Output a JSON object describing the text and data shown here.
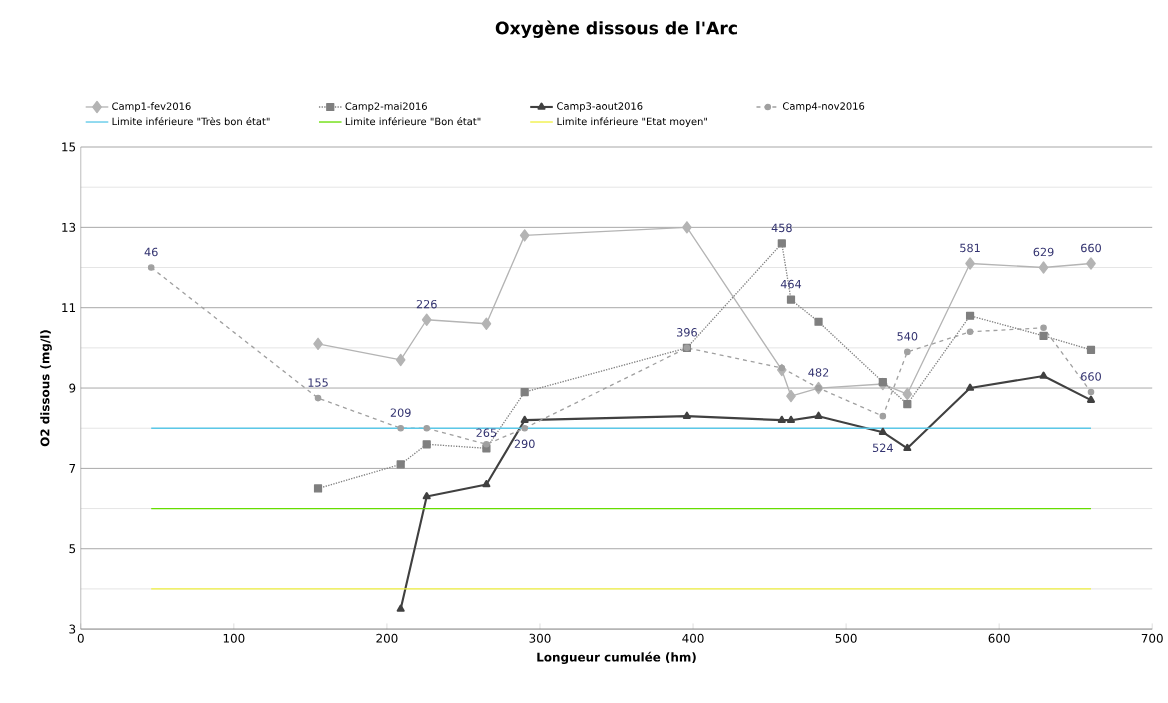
{
  "chart_data": {
    "type": "line",
    "title": "Oxygène dissous de l'Arc",
    "xlabel": "Longueur cumulée (hm)",
    "ylabel": "O2 dissous (mg/l)",
    "xlim": [
      0,
      700
    ],
    "xticks": [
      0,
      100,
      200,
      300,
      400,
      500,
      600,
      700
    ],
    "ylim": [
      3,
      15
    ],
    "yticks": [
      3,
      5,
      7,
      9,
      11,
      13,
      15
    ],
    "grid": "y",
    "legend": "top",
    "series": [
      {
        "name": "Camp1-fev2016",
        "color": "#b4b4b4",
        "marker": "diamond",
        "line_style": "solid",
        "x": [
          155,
          209,
          226,
          265,
          290,
          396,
          458,
          464,
          482,
          524,
          540,
          581,
          629,
          660
        ],
        "values": [
          10.1,
          9.7,
          10.7,
          10.6,
          12.8,
          13.0,
          9.45,
          8.8,
          9.0,
          9.1,
          8.85,
          12.1,
          12.0,
          12.1
        ]
      },
      {
        "name": "Camp2-mai2016",
        "color": "#7f7f7f",
        "marker": "square",
        "line_style": "dotted",
        "x": [
          155,
          209,
          226,
          265,
          290,
          396,
          458,
          464,
          482,
          524,
          540,
          581,
          629,
          660
        ],
        "values": [
          6.5,
          7.1,
          7.6,
          7.5,
          8.9,
          10.0,
          12.6,
          11.2,
          10.65,
          9.15,
          8.6,
          10.8,
          10.3,
          9.95
        ]
      },
      {
        "name": "Camp3-aout2016",
        "color": "#404040",
        "marker": "triangle",
        "line_style": "solid",
        "x": [
          209,
          226,
          265,
          290,
          396,
          458,
          464,
          482,
          524,
          540,
          581,
          629,
          660
        ],
        "values": [
          3.5,
          6.3,
          6.6,
          8.2,
          8.3,
          8.2,
          8.2,
          8.3,
          7.9,
          7.5,
          9.0,
          9.3,
          8.7
        ]
      },
      {
        "name": "Camp4-nov2016",
        "color": "#a0a0a0",
        "marker": "circle",
        "line_style": "dashed",
        "x": [
          46,
          155,
          209,
          226,
          265,
          290,
          396,
          458,
          482,
          524,
          540,
          581,
          629,
          660
        ],
        "values": [
          12.0,
          8.75,
          8.0,
          8.0,
          7.6,
          8.0,
          10.0,
          9.5,
          9.0,
          8.3,
          9.9,
          10.4,
          10.5,
          8.9
        ]
      },
      {
        "name": "Limite inférieure \"Très bon état\"",
        "color": "#5bc8e8",
        "marker": "none",
        "line_style": "solid",
        "x": [
          46,
          660
        ],
        "values": [
          8,
          8
        ]
      },
      {
        "name": "Limite inférieure \"Bon état\"",
        "color": "#66dd00",
        "marker": "none",
        "line_style": "solid",
        "x": [
          46,
          660
        ],
        "values": [
          6,
          6
        ]
      },
      {
        "name": "Limite inférieure \"Etat moyen\"",
        "color": "#f0f040",
        "marker": "none",
        "line_style": "solid",
        "x": [
          46,
          660
        ],
        "values": [
          4,
          4
        ]
      }
    ],
    "annotations": [
      {
        "text": "46",
        "x": 46,
        "y": 12.0
      },
      {
        "text": "155",
        "x": 155,
        "y": 8.75
      },
      {
        "text": "209",
        "x": 209,
        "y": 8.0
      },
      {
        "text": "226",
        "x": 226,
        "y": 10.7
      },
      {
        "text": "265",
        "x": 265,
        "y": 7.5
      },
      {
        "text": "290",
        "x": 290,
        "y": 8.0
      },
      {
        "text": "396",
        "x": 396,
        "y": 10.0
      },
      {
        "text": "458",
        "x": 458,
        "y": 12.6
      },
      {
        "text": "464",
        "x": 464,
        "y": 11.2
      },
      {
        "text": "482",
        "x": 482,
        "y": 9.0
      },
      {
        "text": "524",
        "x": 524,
        "y": 7.9
      },
      {
        "text": "540",
        "x": 540,
        "y": 9.9
      },
      {
        "text": "581",
        "x": 581,
        "y": 12.1
      },
      {
        "text": "629",
        "x": 629,
        "y": 12.0
      },
      {
        "text": "660",
        "x": 660,
        "y": 12.1
      },
      {
        "text": "660",
        "x": 660,
        "y": 8.9
      }
    ]
  }
}
